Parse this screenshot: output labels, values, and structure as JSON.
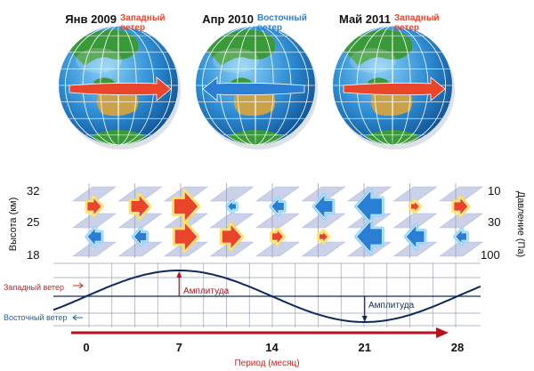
{
  "globes": [
    {
      "date": "Янв 2009",
      "wind_label": "Западный ветер",
      "wind_color": "#e8452a",
      "direction": "east"
    },
    {
      "date": "Апр 2010",
      "wind_label": "Восточный ветер",
      "wind_color": "#2a7fd4",
      "direction": "west"
    },
    {
      "date": "Май 2011",
      "wind_label": "Западный ветер",
      "wind_color": "#e8452a",
      "direction": "east"
    }
  ],
  "left_axis": {
    "title": "Высота (км)",
    "ticks": [
      "32",
      "25",
      "18"
    ]
  },
  "right_axis": {
    "title": "Давление (Па)",
    "ticks": [
      "10",
      "30",
      "100"
    ]
  },
  "period_axis": {
    "title": "Период (месяц)",
    "ticks": [
      "0",
      "7",
      "14",
      "21",
      "28"
    ],
    "tick_values": [
      0,
      7,
      14,
      21,
      28
    ]
  },
  "side_labels": {
    "westerly": "Западный ветер",
    "easterly": "Восточный ветер"
  },
  "amplitude_labels": [
    "Амплитуда",
    "Амплитуда"
  ],
  "colors": {
    "westerly": "#e8452a",
    "easterly": "#2a7fd4",
    "dark_red": "#b5121b",
    "navy": "#0d2a5c",
    "globe_ocean": "#2f8fd6",
    "globe_land": "#3a9a3a",
    "plate": "#c7cde8"
  },
  "arrow_columns": [
    {
      "top": "W",
      "bottom": "E",
      "top_size": 1.0,
      "bottom_size": 1.0
    },
    {
      "top": "W",
      "bottom": "E",
      "top_size": 1.3,
      "bottom_size": 0.9
    },
    {
      "top": "W",
      "bottom": "W",
      "top_size": 1.7,
      "bottom_size": 1.6
    },
    {
      "top": "E",
      "bottom": "W",
      "top_size": 0.6,
      "bottom_size": 1.4
    },
    {
      "top": "E",
      "bottom": "W",
      "top_size": 0.9,
      "bottom_size": 0.8
    },
    {
      "top": "E",
      "bottom": "W",
      "top_size": 1.3,
      "bottom_size": 0.6
    },
    {
      "top": "E",
      "bottom": "E",
      "top_size": 1.8,
      "bottom_size": 1.8
    },
    {
      "top": "W",
      "bottom": "E",
      "top_size": 0.6,
      "bottom_size": 1.3
    },
    {
      "top": "W",
      "bottom": "E",
      "top_size": 1.0,
      "bottom_size": 0.8
    }
  ]
}
